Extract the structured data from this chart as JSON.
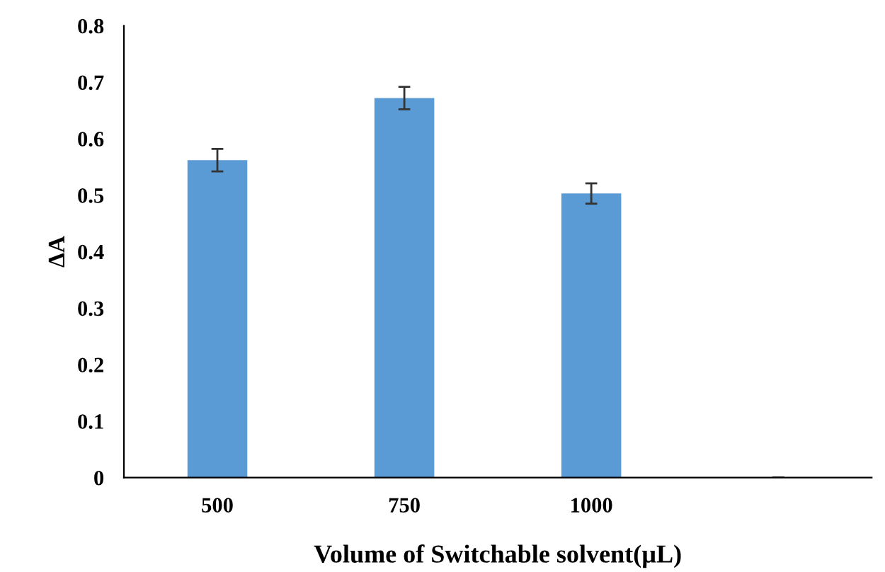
{
  "chart_data": {
    "type": "bar",
    "xlabel": "Volume of Switchable solvent(µL)",
    "ylabel": "ΔA",
    "categories": [
      "500",
      "750",
      "1000",
      null
    ],
    "values": [
      0.562,
      0.672,
      0.503,
      null
    ],
    "errors": [
      0.02,
      0.02,
      0.018,
      null
    ],
    "color": "#5b9bd5",
    "ylim": [
      0,
      0.8
    ],
    "yticks": [
      {
        "value": 0,
        "label": "0"
      },
      0.1,
      0.2,
      0.3,
      0.4,
      0.5,
      0.6,
      0.7,
      0.8
    ],
    "grid": false,
    "legend": false
  }
}
